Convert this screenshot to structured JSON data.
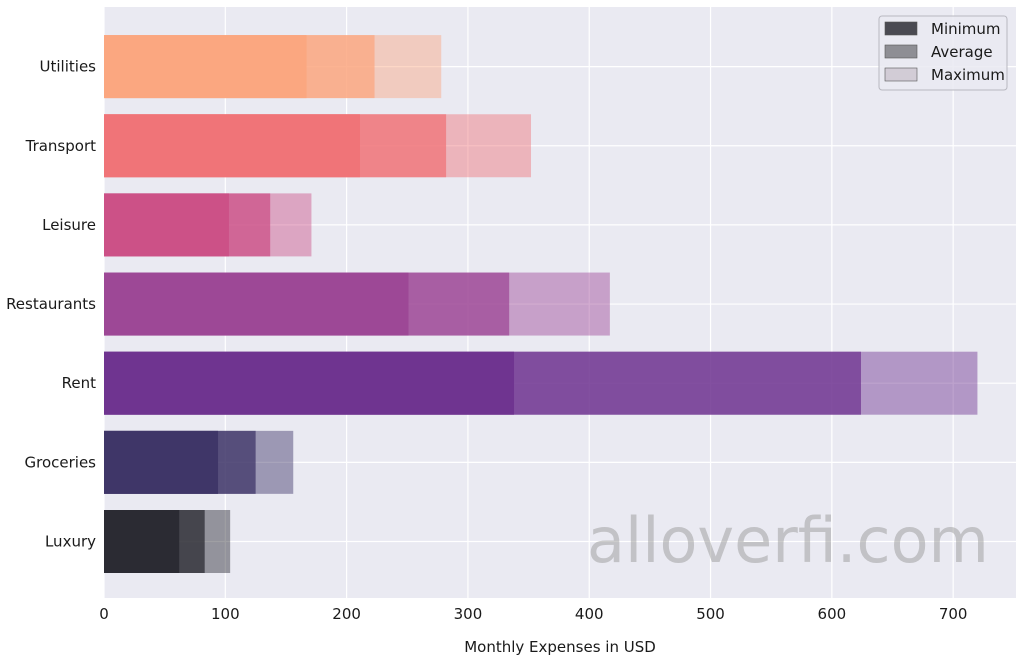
{
  "chart_data": {
    "type": "bar",
    "orientation": "horizontal",
    "stacked": false,
    "categories": [
      "Luxury",
      "Groceries",
      "Rent",
      "Restaurants",
      "Leisure",
      "Transport",
      "Utilities"
    ],
    "series": [
      {
        "name": "Minimum",
        "values": [
          62,
          94,
          338,
          251,
          103,
          211,
          167
        ]
      },
      {
        "name": "Average",
        "values": [
          83,
          125,
          624,
          334,
          137,
          282,
          223
        ]
      },
      {
        "name": "Maximum",
        "values": [
          104,
          156,
          720,
          417,
          171,
          352,
          278
        ]
      }
    ],
    "category_colors": [
      "#2b2b33",
      "#3f3668",
      "#6f3490",
      "#9d4896",
      "#cc5187",
      "#f07478",
      "#fba780"
    ],
    "legend_swatch_colors": [
      "#4a4a52",
      "#8e8e94",
      "#d2ccd6"
    ],
    "xlabel": "Monthly Expenses in USD",
    "ylabel": "",
    "xlim": [
      0,
      755
    ],
    "xticks": [
      0,
      100,
      200,
      300,
      400,
      500,
      600,
      700
    ],
    "grid": true,
    "legend_position": "top-right",
    "watermark": "alloverfi.com"
  }
}
